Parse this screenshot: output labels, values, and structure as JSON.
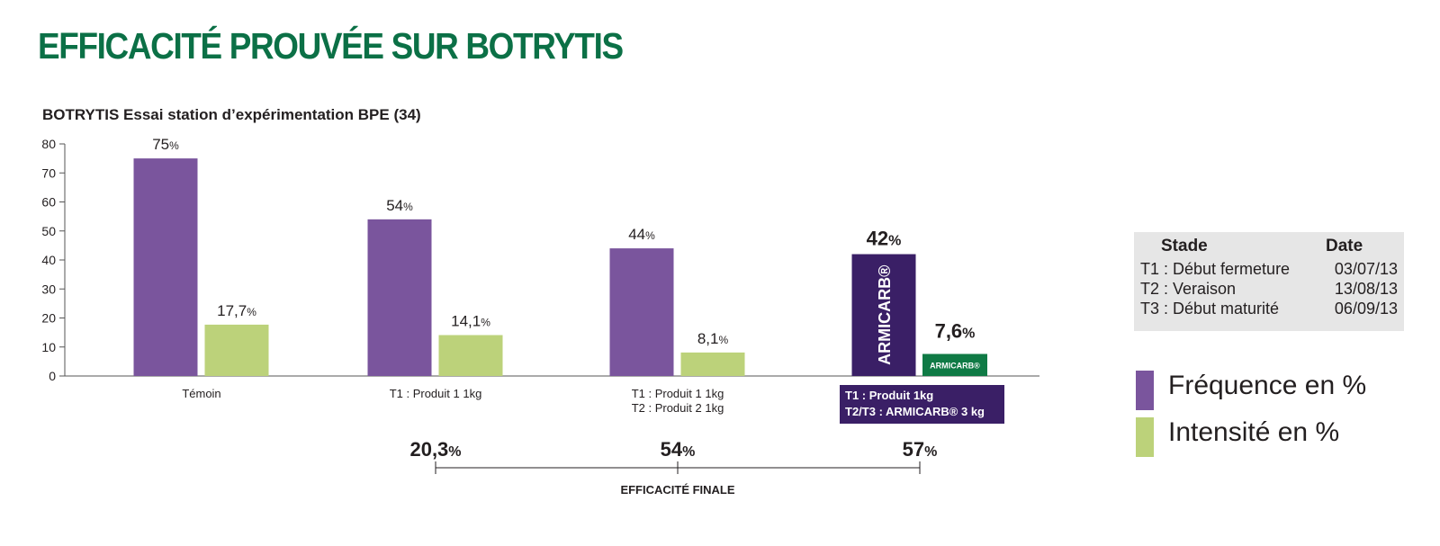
{
  "page": {
    "title": "EFFICACITÉ PROUVÉE SUR BOTRYTIS"
  },
  "chart_data": {
    "type": "bar",
    "title": "BOTRYTIS Essai station d’expérimentation BPE (34)",
    "ylim": [
      0,
      80
    ],
    "yticks": [
      "0",
      "10",
      "20",
      "30",
      "40",
      "50",
      "60",
      "70",
      "80"
    ],
    "categories": [
      [
        "Témoin"
      ],
      [
        "T1 :  Produit 1 1kg"
      ],
      [
        "T1 :  Produit 1 1kg",
        "T2 :  Produit 2 1kg"
      ],
      [
        "T1 : Produit 1kg",
        "T2/T3 : ARMICARB® 3 kg"
      ]
    ],
    "series": [
      {
        "name": "Fréquence en %",
        "color": "#7a559d",
        "values": [
          75,
          54,
          44,
          42
        ],
        "labels": [
          {
            "num": "75",
            "unit": "%"
          },
          {
            "num": "54",
            "unit": "%"
          },
          {
            "num": "44",
            "unit": "%"
          },
          {
            "num": "42",
            "unit": "%"
          }
        ]
      },
      {
        "name": "Intensité en %",
        "color": "#bcd27a",
        "values": [
          17.7,
          14.1,
          8.1,
          7.6
        ],
        "labels": [
          {
            "num": "17,7",
            "unit": "%"
          },
          {
            "num": "14,1",
            "unit": "%"
          },
          {
            "num": "8,1",
            "unit": "%"
          },
          {
            "num": "7,6",
            "unit": "%"
          }
        ]
      }
    ],
    "highlight": {
      "category_index": 3,
      "bar_color": "#3a1f66",
      "intensity_color": "#0f7a45",
      "bar_text": "ARMICARB®",
      "badge_text": "ARMICARB®"
    },
    "efficacy": {
      "label": "EFFICACITÉ FINALE",
      "values": [
        {
          "num": "20,3",
          "unit": "%"
        },
        {
          "num": "54",
          "unit": "%"
        },
        {
          "num": "57",
          "unit": "%"
        }
      ]
    }
  },
  "stage_table": {
    "headers": [
      "Stade",
      "Date"
    ],
    "rows": [
      {
        "stade": "T1 : Début fermeture",
        "date": "03/07/13"
      },
      {
        "stade": "T2 : Veraison",
        "date": "13/08/13"
      },
      {
        "stade": "T3 : Début maturité",
        "date": "06/09/13"
      }
    ]
  },
  "legend": [
    {
      "label": "Fréquence en %",
      "color": "#7a559d"
    },
    {
      "label": "Intensité en %",
      "color": "#bcd27a"
    }
  ]
}
